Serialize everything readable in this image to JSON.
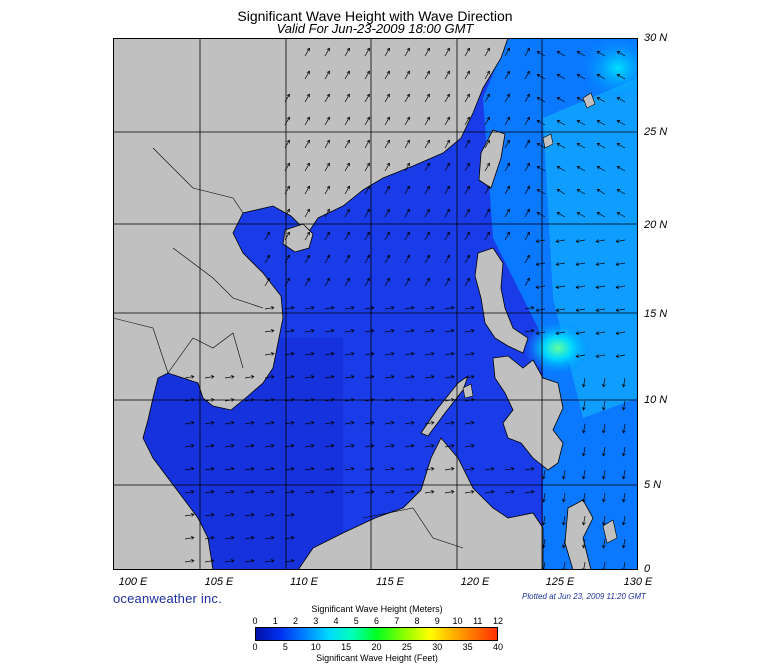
{
  "header": {
    "title": "Significant Wave Height with Wave Direction",
    "valid": "Valid For Jun-23-2009 18:00 GMT"
  },
  "map": {
    "lon_range": [
      100,
      130
    ],
    "lat_range": [
      0,
      30
    ],
    "lat_labels": [
      "30 N",
      "25 N",
      "20 N",
      "15 N",
      "10 N",
      "5 N",
      "0"
    ],
    "lon_labels": [
      "100 E",
      "105 E",
      "110 E",
      "115 E",
      "120 E",
      "125 E",
      "130 E"
    ],
    "land_color": "#c0c0c0",
    "sea_color": "#1a3ce8",
    "highlight_color": "#40ff70"
  },
  "footer": {
    "brand": "oceanweather inc.",
    "plotted": "Plotted at Jun 23, 2009 11:20 GMT"
  },
  "colorbar": {
    "title_top": "Significant Wave Height (Meters)",
    "meter_ticks": [
      "0",
      "1",
      "2",
      "3",
      "4",
      "5",
      "6",
      "7",
      "8",
      "9",
      "10",
      "11",
      "12"
    ],
    "feet_ticks": [
      "0",
      "5",
      "10",
      "15",
      "20",
      "25",
      "30",
      "35",
      "40"
    ],
    "title_bottom": "Significant Wave Height (Feet)"
  }
}
